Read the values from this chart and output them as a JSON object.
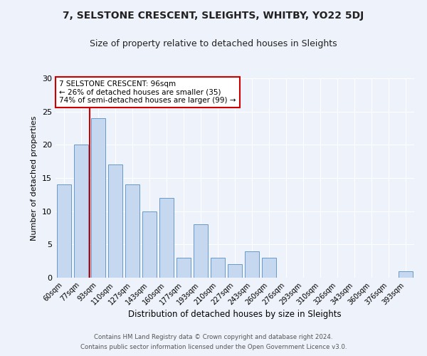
{
  "title": "7, SELSTONE CRESCENT, SLEIGHTS, WHITBY, YO22 5DJ",
  "subtitle": "Size of property relative to detached houses in Sleights",
  "xlabel": "Distribution of detached houses by size in Sleights",
  "ylabel": "Number of detached properties",
  "bar_labels": [
    "60sqm",
    "77sqm",
    "93sqm",
    "110sqm",
    "127sqm",
    "143sqm",
    "160sqm",
    "177sqm",
    "193sqm",
    "210sqm",
    "227sqm",
    "243sqm",
    "260sqm",
    "276sqm",
    "293sqm",
    "310sqm",
    "326sqm",
    "343sqm",
    "360sqm",
    "376sqm",
    "393sqm"
  ],
  "bar_values": [
    14,
    20,
    24,
    17,
    14,
    10,
    12,
    3,
    8,
    3,
    2,
    4,
    3,
    0,
    0,
    0,
    0,
    0,
    0,
    0,
    1
  ],
  "bar_color": "#c5d8f0",
  "bar_edge_color": "#6699cc",
  "reference_line_color": "#cc0000",
  "ylim": [
    0,
    30
  ],
  "yticks": [
    0,
    5,
    10,
    15,
    20,
    25,
    30
  ],
  "annotation_text": "7 SELSTONE CRESCENT: 96sqm\n← 26% of detached houses are smaller (35)\n74% of semi-detached houses are larger (99) →",
  "annotation_box_color": "#ffffff",
  "annotation_border_color": "#cc0000",
  "footer_line1": "Contains HM Land Registry data © Crown copyright and database right 2024.",
  "footer_line2": "Contains public sector information licensed under the Open Government Licence v3.0.",
  "background_color": "#eef2fa"
}
